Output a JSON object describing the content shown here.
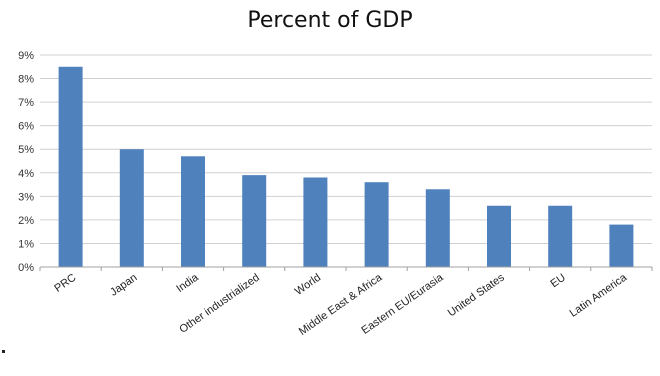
{
  "chart_data": {
    "type": "bar",
    "title": "Percent of GDP",
    "xlabel": "",
    "ylabel": "",
    "categories": [
      "PRC",
      "Japan",
      "India",
      "Other industrialized",
      "World",
      "Middle East & Africa",
      "Eastern EU/Eurasia",
      "United States",
      "EU",
      "Latin America"
    ],
    "values": [
      8.5,
      5.0,
      4.7,
      3.9,
      3.8,
      3.6,
      3.3,
      2.6,
      2.6,
      1.8
    ],
    "ylim": [
      0,
      9
    ],
    "yticks": [
      0,
      1,
      2,
      3,
      4,
      5,
      6,
      7,
      8,
      9
    ],
    "ytick_labels": [
      "0%",
      "1%",
      "2%",
      "3%",
      "4%",
      "5%",
      "6%",
      "7%",
      "8%",
      "9%"
    ],
    "grid": true,
    "legend": "none",
    "bar_color": "#4f81bd",
    "grid_color": "#d0d0d0"
  }
}
